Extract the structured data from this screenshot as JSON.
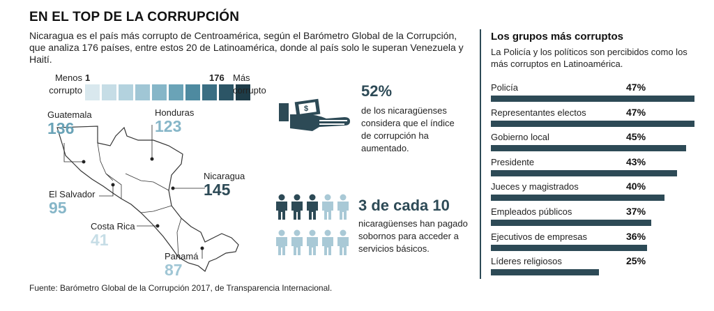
{
  "header": {
    "title": "EN EL TOP DE LA CORRUPCIÓN",
    "subtitle": "Nicaragua es el país más corrupto de Centroamérica, según el Barómetro Global de la Corrupción, que analiza 176 países, entre estos 20 de Latinoamérica, donde al país solo le superan Venezuela y Haití."
  },
  "scale": {
    "less_label_1": "Menos",
    "less_label_2": "corrupto",
    "more_label_1": "Más",
    "more_label_2": "corrupto",
    "min": "1",
    "max": "176",
    "colors": [
      "#d9e8ee",
      "#c6dde6",
      "#b3d2de",
      "#a0c6d5",
      "#86b6c8",
      "#6aa3b7",
      "#4e8aa0",
      "#3a6e83",
      "#2c5566",
      "#1e3c48"
    ]
  },
  "countries": [
    {
      "name": "Guatemala",
      "rank": "136",
      "color": "#6aa3b7"
    },
    {
      "name": "Honduras",
      "rank": "123",
      "color": "#86b6c8"
    },
    {
      "name": "Nicaragua",
      "rank": "145",
      "color": "#2d4a56"
    },
    {
      "name": "El Salvador",
      "rank": "95",
      "color": "#86b6c8"
    },
    {
      "name": "Costa Rica",
      "rank": "41",
      "color": "#c6dde6"
    },
    {
      "name": "Panamá",
      "rank": "87",
      "color": "#a0c6d5"
    }
  ],
  "stats": {
    "pct": "52%",
    "pct_text": "de los nicaragüenses considera que el índice de corrupción ha aumentado.",
    "bribe_head": "3 de cada 10",
    "bribe_text": "nicaragüenses han pagado sobornos para acceder a servicios básicos.",
    "icon_dark": "#2d4a56",
    "icon_light": "#a9c9d6"
  },
  "right_panel": {
    "title": "Los grupos más corruptos",
    "subtitle": "La Policía y los políticos son percibidos como los más corruptos en Latinoamérica."
  },
  "chart_data": {
    "type": "bar",
    "title": "Los grupos más corruptos",
    "categories": [
      "Policía",
      "Representantes electos",
      "Gobierno local",
      "Presidente",
      "Jueces y magistrados",
      "Empleados públicos",
      "Ejecutivos de empresas",
      "Líderes religiosos"
    ],
    "values": [
      47,
      47,
      45,
      43,
      40,
      37,
      36,
      25
    ],
    "value_labels": [
      "47%",
      "47%",
      "45%",
      "43%",
      "40%",
      "37%",
      "36%",
      "25%"
    ],
    "unit": "%",
    "xlim": [
      0,
      47
    ],
    "bar_color": "#2d4a56",
    "grid": false
  },
  "footer": {
    "source": "Fuente: Barómetro Global de la Corrupción 2017, de Transparencia Internacional."
  }
}
